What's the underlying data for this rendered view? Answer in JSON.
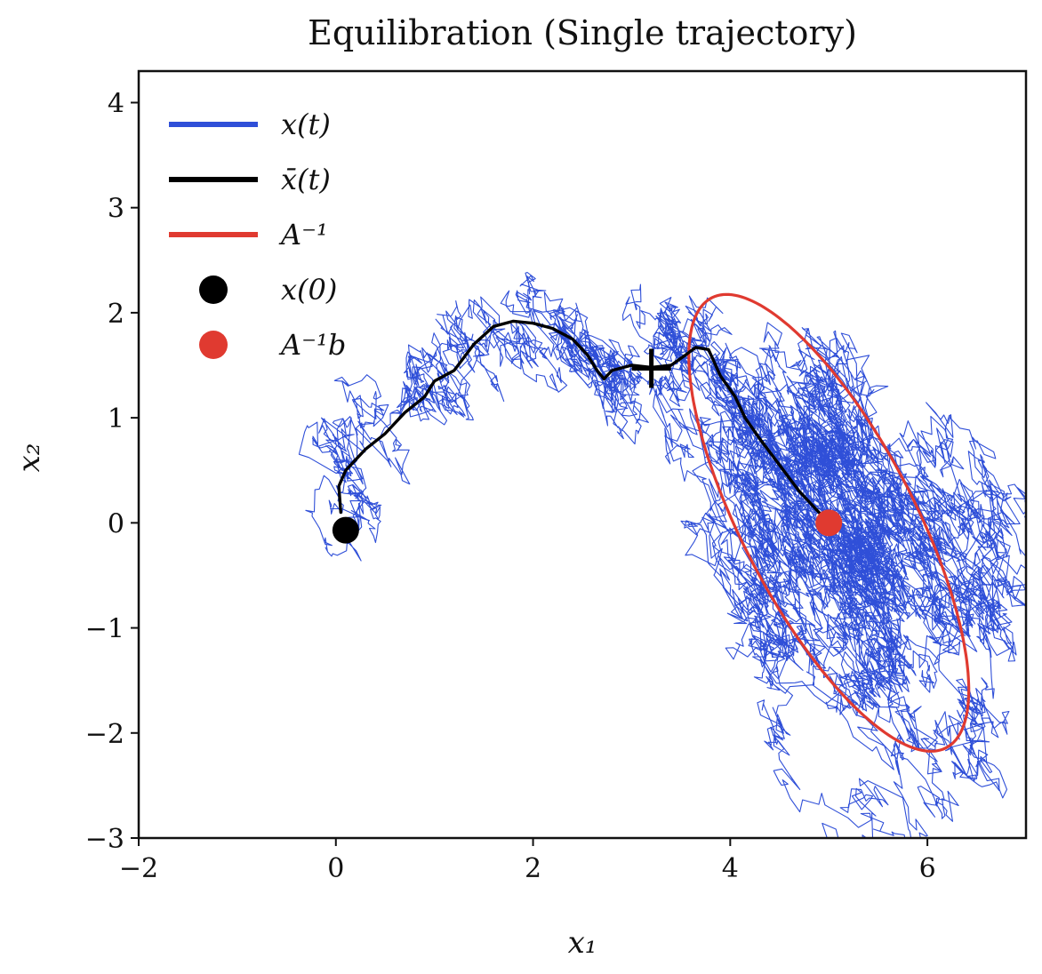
{
  "chart_data": {
    "type": "line",
    "title": "Equilibration (Single trajectory)",
    "xlabel": "x₁",
    "ylabel": "x₂",
    "xlim": [
      -2,
      7
    ],
    "ylim": [
      -3,
      4.3
    ],
    "x_ticks": [
      -2,
      0,
      2,
      4,
      6
    ],
    "y_ticks": [
      -3,
      -2,
      -1,
      0,
      1,
      2,
      3,
      4
    ],
    "x_tick_labels": [
      "−2",
      "0",
      "2",
      "4",
      "6"
    ],
    "y_tick_labels": [
      "−3",
      "−2",
      "−1",
      "0",
      "1",
      "2",
      "3",
      "4"
    ],
    "grid": false,
    "legend_position": "top-left",
    "legend": [
      {
        "label": "x(t)",
        "kind": "line",
        "color": "#2f4fd8"
      },
      {
        "label": "x̄(t)",
        "kind": "line",
        "color": "#000000"
      },
      {
        "label": "A⁻¹",
        "kind": "line",
        "color": "#e03a30"
      },
      {
        "label": "x(0)",
        "kind": "marker",
        "color": "#000000"
      },
      {
        "label": "A⁻¹b",
        "kind": "marker",
        "color": "#e03a30"
      }
    ],
    "series": [
      {
        "name": "x̄(t)",
        "color": "#000000",
        "points": [
          [
            0.05,
            0.1
          ],
          [
            0.03,
            0.35
          ],
          [
            0.1,
            0.5
          ],
          [
            0.3,
            0.7
          ],
          [
            0.5,
            0.85
          ],
          [
            0.7,
            1.05
          ],
          [
            0.9,
            1.2
          ],
          [
            1.0,
            1.35
          ],
          [
            1.2,
            1.45
          ],
          [
            1.4,
            1.7
          ],
          [
            1.6,
            1.87
          ],
          [
            1.8,
            1.92
          ],
          [
            2.0,
            1.9
          ],
          [
            2.2,
            1.85
          ],
          [
            2.4,
            1.75
          ],
          [
            2.55,
            1.6
          ],
          [
            2.65,
            1.45
          ],
          [
            2.72,
            1.37
          ],
          [
            2.8,
            1.45
          ],
          [
            3.0,
            1.5
          ],
          [
            3.2,
            1.48
          ],
          [
            3.4,
            1.5
          ],
          [
            3.55,
            1.6
          ],
          [
            3.65,
            1.67
          ],
          [
            3.78,
            1.65
          ],
          [
            3.9,
            1.4
          ],
          [
            4.05,
            1.2
          ],
          [
            4.15,
            1.0
          ],
          [
            4.3,
            0.8
          ],
          [
            4.5,
            0.55
          ],
          [
            4.7,
            0.3
          ],
          [
            4.9,
            0.1
          ],
          [
            5.0,
            0.0
          ]
        ]
      },
      {
        "name": "x(t)",
        "color": "#2f4fd8",
        "seed": 7,
        "steps": 9000,
        "start": [
          0.05,
          -0.05
        ],
        "attractor": [
          5.0,
          0.0
        ]
      }
    ],
    "ellipse": {
      "name": "A⁻¹",
      "center": [
        5.0,
        0.0
      ],
      "semi_major": 2.45,
      "semi_minor": 0.86,
      "angle_deg": -60.5,
      "color": "#e03a30"
    },
    "markers": [
      {
        "name": "x(0)",
        "x": 0.1,
        "y": -0.07,
        "color": "#000000"
      },
      {
        "name": "A⁻¹b",
        "x": 5.0,
        "y": 0.0,
        "color": "#e03a30"
      }
    ],
    "plus_marker": {
      "x": 3.2,
      "y": 1.47,
      "color": "#000000"
    }
  }
}
